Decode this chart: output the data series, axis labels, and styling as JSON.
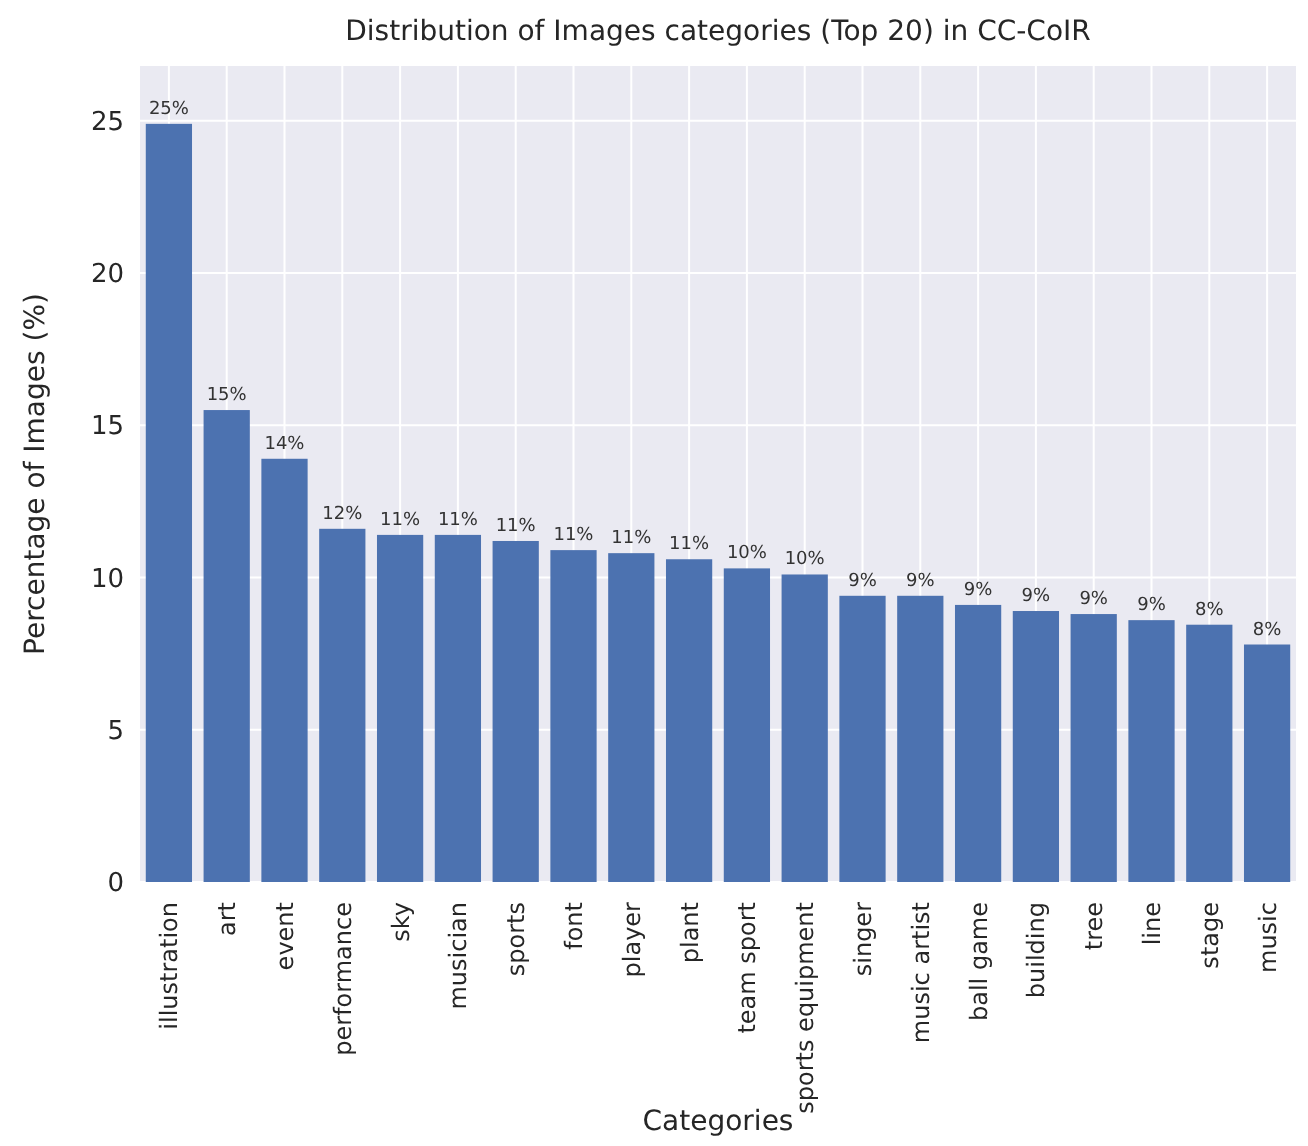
{
  "chart_data": {
    "type": "bar",
    "title": "Distribution of Images categories (Top 20) in CC-CoIR",
    "xlabel": "Categories",
    "ylabel": "Percentage of Images (%)",
    "categories": [
      "illustration",
      "art",
      "event",
      "performance",
      "sky",
      "musician",
      "sports",
      "font",
      "player",
      "plant",
      "team sport",
      "sports equipment",
      "singer",
      "music artist",
      "ball game",
      "building",
      "tree",
      "line",
      "stage",
      "music"
    ],
    "values": [
      24.9,
      15.5,
      13.9,
      11.6,
      11.4,
      11.4,
      11.2,
      10.9,
      10.8,
      10.6,
      10.3,
      10.1,
      9.4,
      9.4,
      9.1,
      8.9,
      8.8,
      8.6,
      8.45,
      7.8
    ],
    "value_labels": [
      "25%",
      "15%",
      "14%",
      "12%",
      "11%",
      "11%",
      "11%",
      "11%",
      "11%",
      "11%",
      "10%",
      "10%",
      "9%",
      "9%",
      "9%",
      "9%",
      "9%",
      "9%",
      "8%",
      "8%"
    ],
    "color": "#4c72b0",
    "ylim": [
      0,
      26.8
    ],
    "yticks": [
      0,
      5,
      10,
      15,
      20,
      25
    ],
    "grid": true
  }
}
